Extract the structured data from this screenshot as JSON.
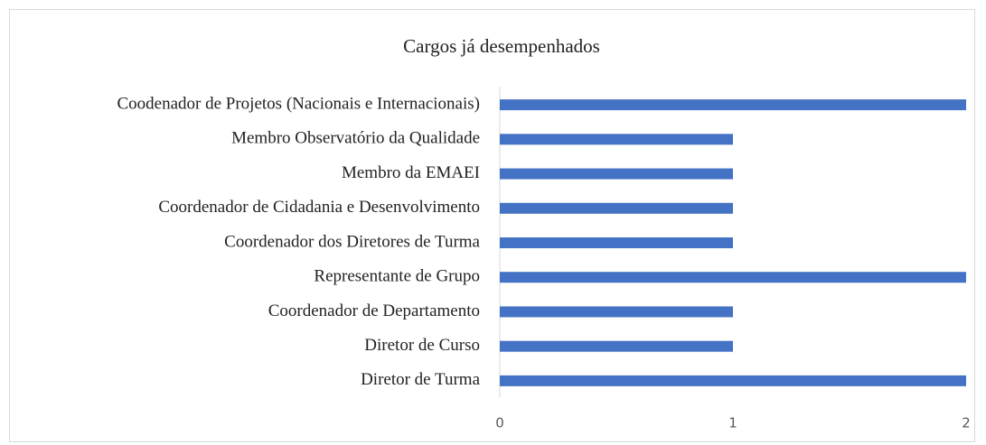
{
  "chart_data": {
    "type": "bar",
    "orientation": "horizontal",
    "title": "Cargos já desempenhados",
    "categories": [
      "Coodenador de Projetos (Nacionais e Internacionais)",
      "Membro Observatório da Qualidade",
      "Membro da EMAEI",
      "Coordenador de Cidadania e Desenvolvimento",
      "Coordenador dos Diretores de Turma",
      "Representante de Grupo",
      "Coordenador de Departamento",
      "Diretor de Curso",
      "Diretor de Turma"
    ],
    "values": [
      2,
      1,
      1,
      1,
      1,
      2,
      1,
      1,
      2
    ],
    "color": "#4472c4",
    "xlim": [
      0,
      2
    ],
    "xticks": [
      0,
      1,
      2
    ],
    "grid": false
  }
}
